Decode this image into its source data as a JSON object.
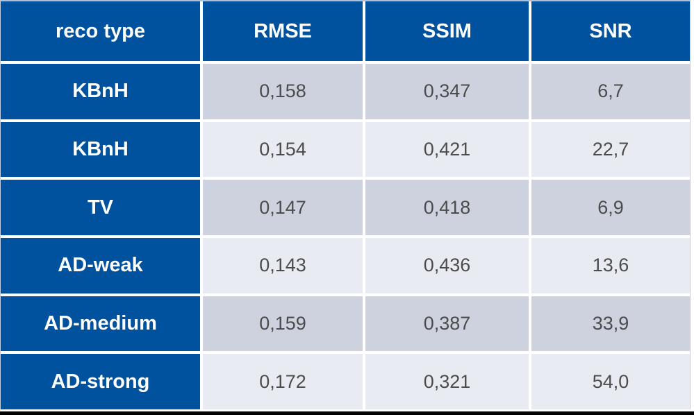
{
  "chart_data": {
    "type": "table",
    "columns": [
      "reco type",
      "RMSE",
      "SSIM",
      "SNR"
    ],
    "rows": [
      [
        "KBnH",
        "0,158",
        "0,347",
        "6,7"
      ],
      [
        "KBnH",
        "0,154",
        "0,421",
        "22,7"
      ],
      [
        "TV",
        "0,147",
        "0,418",
        "6,9"
      ],
      [
        "AD-weak",
        "0,143",
        "0,436",
        "13,6"
      ],
      [
        "AD-medium",
        "0,159",
        "0,387",
        "33,9"
      ],
      [
        "AD-strong",
        "0,172",
        "0,321",
        "54,0"
      ]
    ],
    "layout_hints": {
      "header_position": "top-row-and-left-column",
      "body_rows_alternate": true,
      "decimal_separator": "comma"
    }
  },
  "colors": {
    "header_bg": "#00519e",
    "row_label_bg": "#00519e",
    "header_text": "#ffffff",
    "data_row_dark": "#cdd2de",
    "data_row_light": "#e9ebf2",
    "data_text": "#4c4c4c",
    "grid_gap": "#ffffff",
    "bottom_rule": "#000000"
  }
}
